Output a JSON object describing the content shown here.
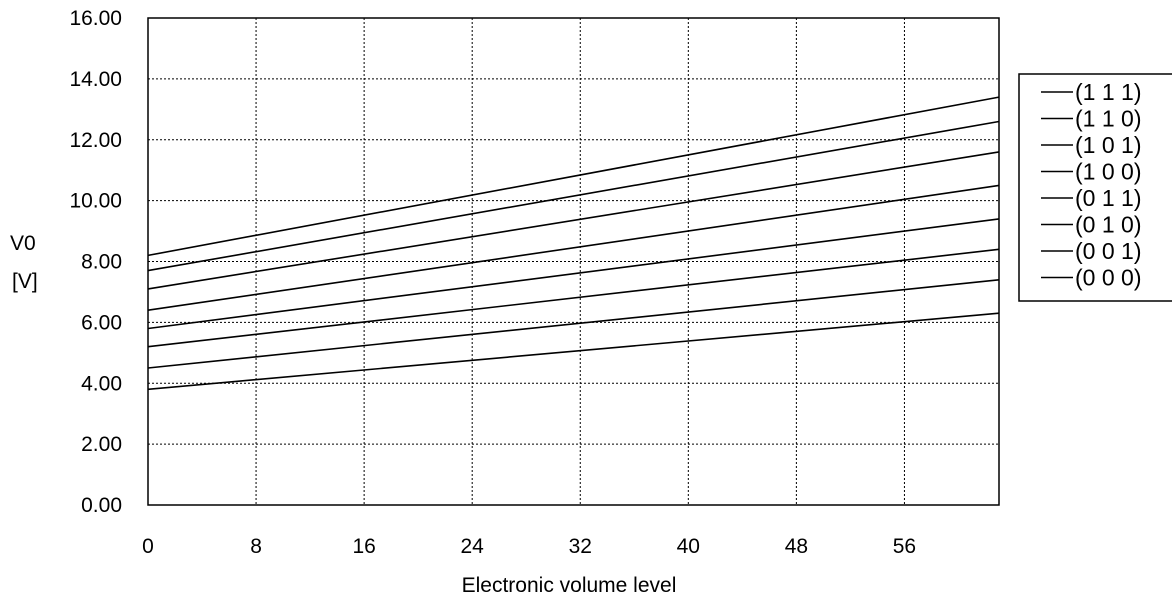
{
  "chart_data": {
    "type": "line",
    "title": "",
    "xlabel": "Electronic volume level",
    "ylabel_line1": "V0",
    "ylabel_line2": "[V]",
    "xlim": [
      0,
      63
    ],
    "ylim": [
      0,
      16
    ],
    "x_ticks": [
      "0",
      "8",
      "16",
      "24",
      "32",
      "40",
      "48",
      "56"
    ],
    "y_ticks": [
      "0.00",
      "2.00",
      "4.00",
      "6.00",
      "8.00",
      "10.00",
      "12.00",
      "14.00",
      "16.00"
    ],
    "grid": true,
    "legend_position": "right",
    "series": [
      {
        "name": "(1 1 1)",
        "x": [
          0,
          63
        ],
        "values": [
          8.2,
          13.4
        ]
      },
      {
        "name": "(1 1 0)",
        "x": [
          0,
          63
        ],
        "values": [
          7.7,
          12.6
        ]
      },
      {
        "name": "(1 0 1)",
        "x": [
          0,
          63
        ],
        "values": [
          7.1,
          11.6
        ]
      },
      {
        "name": "(1 0 0)",
        "x": [
          0,
          63
        ],
        "values": [
          6.4,
          10.5
        ]
      },
      {
        "name": "(0 1 1)",
        "x": [
          0,
          63
        ],
        "values": [
          5.8,
          9.4
        ]
      },
      {
        "name": "(0 1 0)",
        "x": [
          0,
          63
        ],
        "values": [
          5.2,
          8.4
        ]
      },
      {
        "name": "(0 0 1)",
        "x": [
          0,
          63
        ],
        "values": [
          4.5,
          7.4
        ]
      },
      {
        "name": "(0 0 0)",
        "x": [
          0,
          63
        ],
        "values": [
          3.8,
          6.3
        ]
      }
    ]
  }
}
